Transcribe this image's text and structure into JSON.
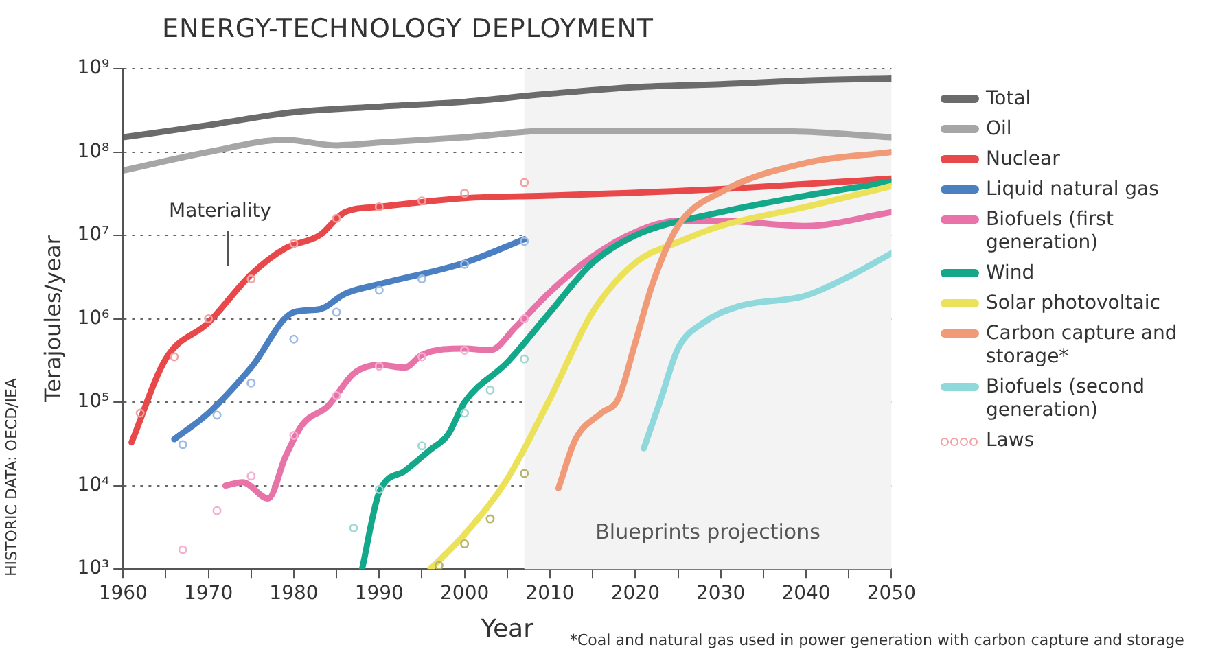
{
  "chart_data": {
    "type": "line",
    "title": "ENERGY-TECHNOLOGY DEPLOYMENT",
    "xlabel": "Year",
    "ylabel": "Terajoules/year",
    "log": "y",
    "grid": "y",
    "legend": "right",
    "marker": "none",
    "xlim": [
      1960,
      2050
    ],
    "xticks": [
      1960,
      {
        "value": 1965,
        "label": null
      },
      1970,
      {
        "value": 1975,
        "label": null
      },
      1980,
      {
        "value": 1985,
        "label": null
      },
      1990,
      {
        "value": 1995,
        "label": null
      },
      2000,
      {
        "value": 2005,
        "label": null
      },
      2010,
      {
        "value": 2015,
        "label": null
      },
      2020,
      {
        "value": 2025,
        "label": null
      },
      2030,
      {
        "value": 2035,
        "label": null
      },
      2040,
      {
        "value": 2045,
        "label": null
      },
      2050
    ],
    "ylim": [
      1000,
      1000000000
    ],
    "yticks": [
      {
        "value": 1000,
        "label": "10³"
      },
      {
        "value": 10000,
        "label": "10⁴"
      },
      {
        "value": 100000,
        "label": "10⁵"
      },
      {
        "value": 1000000,
        "label": "10⁶"
      },
      {
        "value": 10000000,
        "label": "10⁷"
      },
      {
        "value": 100000000,
        "label": "10⁸"
      },
      {
        "value": 1000000000,
        "label": "10⁹"
      }
    ],
    "bands": [
      {
        "axis": "x",
        "from": 2007,
        "to": 2050,
        "label": "Blueprints projections",
        "color": "#f3f3f3"
      }
    ],
    "annotations": [
      "HISTORIC DATA: OECD/IEA",
      "*Coal and natural gas used in power generation with carbon capture and storage",
      "Materiality"
    ],
    "series": [
      {
        "name": "Total",
        "color": "#6b6b6b",
        "x": [
          1960,
          1970,
          1980,
          1990,
          2000,
          2010,
          2020,
          2030,
          2040,
          2050
        ],
        "values": [
          150000000.0,
          210000000.0,
          300000000.0,
          350000000.0,
          400000000.0,
          500000000.0,
          600000000.0,
          650000000.0,
          720000000.0,
          760000000.0
        ]
      },
      {
        "name": "Oil",
        "color": "#a6a6a6",
        "x": [
          1960,
          1970,
          1979,
          1985,
          1990,
          2000,
          2010,
          2020,
          2030,
          2040,
          2050
        ],
        "values": [
          60000000.0,
          100000000.0,
          140000000.0,
          120000000.0,
          130000000.0,
          150000000.0,
          180000000.0,
          180000000.0,
          180000000.0,
          175000000.0,
          150000000.0
        ]
      },
      {
        "name": "Nuclear",
        "color": "#e8484a",
        "x": [
          1961,
          1965,
          1970,
          1975,
          1979,
          1983,
          1986,
          1990,
          2000,
          2010,
          2030,
          2050
        ],
        "values": [
          33000.0,
          330000.0,
          900000.0,
          3400000.0,
          7000000.0,
          10000000.0,
          19000000.0,
          22000000.0,
          28000000.0,
          30000000.0,
          36000000.0,
          48000000.0
        ]
      },
      {
        "name": "Liquid natural gas",
        "color": "#4a7fc1",
        "x": [
          1966,
          1970,
          1975,
          1980,
          1983,
          1986,
          1990,
          2000,
          2007
        ],
        "values": [
          36000.0,
          74000.0,
          260000.0,
          1200000.0,
          1300000.0,
          2000000.0,
          2600000.0,
          4700000.0,
          9000000.0
        ]
      },
      {
        "name": "Biofuels (first generation)",
        "color": "#e873a8",
        "x": [
          1972,
          1974,
          1977,
          1979,
          1981,
          1984,
          1987,
          1990,
          1993,
          1995,
          2000,
          2003,
          2006,
          2010,
          2015,
          2020,
          2025,
          2030,
          2040,
          2050
        ],
        "values": [
          10000.0,
          11000.0,
          7000.0,
          22000.0,
          54000.0,
          90000.0,
          220000.0,
          280000.0,
          260000.0,
          370000.0,
          440000.0,
          420000.0,
          800000.0,
          2100000.0,
          5600000.0,
          11000000.0,
          15000000.0,
          15000000.0,
          13000000.0,
          19000000.0
        ]
      },
      {
        "name": "Wind",
        "color": "#13a88a",
        "x": [
          1988,
          1990,
          1993,
          1996,
          1998,
          2000,
          2005,
          2010,
          2015,
          2020,
          2030,
          2040,
          2050
        ],
        "values": [
          1000.0,
          8300.0,
          15000.0,
          27000.0,
          40000.0,
          100000.0,
          300000.0,
          1200000.0,
          4700000.0,
          10000000.0,
          19000000.0,
          30000000.0,
          44000000.0
        ]
      },
      {
        "name": "Solar photovoltaic",
        "color": "#ece25a",
        "x": [
          1996,
          2000,
          2005,
          2010,
          2015,
          2020,
          2025,
          2030,
          2040,
          2050
        ],
        "values": [
          1000.0,
          2600.0,
          12000.0,
          110000.0,
          1200000.0,
          4700000.0,
          8300000.0,
          13000000.0,
          22000000.0,
          39000000.0
        ]
      },
      {
        "name": "Carbon capture and storage*",
        "color": "#f09a78",
        "x": [
          2011,
          2013,
          2016,
          2018,
          2020,
          2022,
          2025,
          2030,
          2040,
          2050
        ],
        "values": [
          9300.0,
          36000.0,
          74000.0,
          110000.0,
          520000.0,
          2600000.0,
          13000000.0,
          33000000.0,
          74000000.0,
          100000000.0
        ]
      },
      {
        "name": "Biofuels (second generation)",
        "color": "#8fd8dc",
        "x": [
          2021,
          2023,
          2025,
          2028,
          2032,
          2040,
          2045,
          2050
        ],
        "values": [
          28000.0,
          110000.0,
          440000.0,
          900000.0,
          1400000.0,
          1900000.0,
          3200000.0,
          6100000.0
        ]
      },
      {
        "name": "Laws",
        "type": "scatter",
        "marker": "circle",
        "color": "#f2a0a0",
        "x": [
          1962,
          1966,
          1970,
          1975,
          1980,
          1985,
          1990,
          1995,
          2000,
          2007
        ],
        "values": [
          74000.0,
          350000.0,
          1000000.0,
          3000000.0,
          8000000.0,
          16000000.0,
          22000000.0,
          26000000.0,
          32000000.0,
          43000000.0
        ]
      },
      {
        "type": "scatter",
        "marker": "circle",
        "color": "#9dbbe3",
        "x": [
          1967,
          1971,
          1975,
          1980,
          1985,
          1990,
          1995,
          2000,
          2007
        ],
        "values": [
          31000.0,
          70000.0,
          170000.0,
          570000.0,
          1200000.0,
          2200000.0,
          3000000.0,
          4500000.0,
          8500000.0
        ]
      },
      {
        "type": "scatter",
        "marker": "circle",
        "color": "#f4b0d0",
        "x": [
          1967,
          1971,
          1975,
          1980,
          1985,
          1990,
          1995,
          2000,
          2007
        ],
        "values": [
          1700.0,
          5000.0,
          13000.0,
          40000.0,
          120000.0,
          270000.0,
          350000.0,
          420000.0,
          1000000.0
        ]
      },
      {
        "type": "scatter",
        "marker": "circle",
        "color": "#9ed6d6",
        "x": [
          1987,
          1990,
          1995,
          2000,
          2003,
          2007
        ],
        "values": [
          3100.0,
          9000.0,
          30000.0,
          74000.0,
          140000.0,
          330000.0
        ]
      },
      {
        "type": "scatter",
        "marker": "circle",
        "color": "#b9b36a",
        "x": [
          1997,
          2000,
          2003,
          2007
        ],
        "values": [
          1100.0,
          2000.0,
          4000.0,
          14000.0
        ]
      }
    ]
  }
}
